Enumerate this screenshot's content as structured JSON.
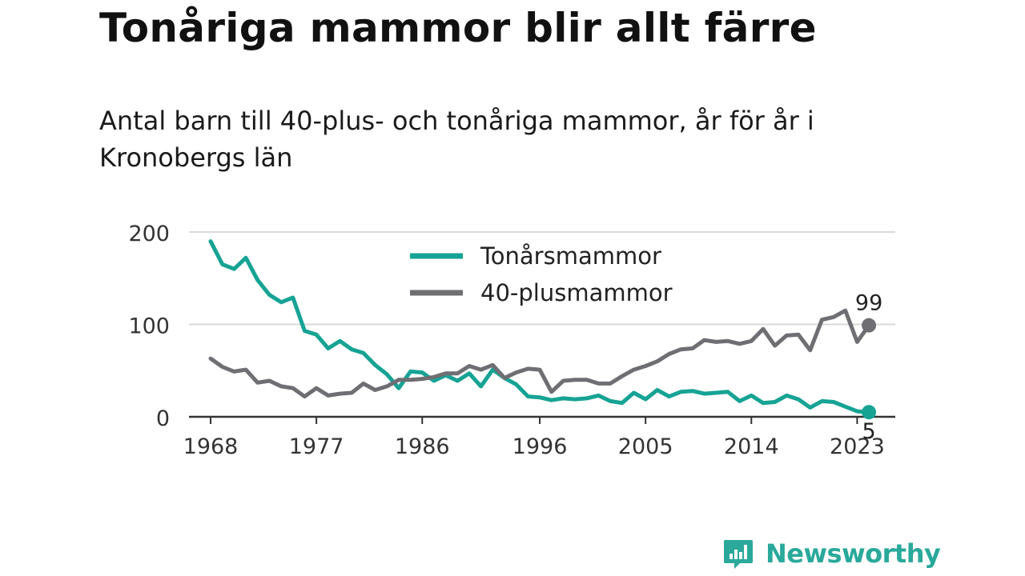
{
  "title": "Tonåriga mammor blir allt färre",
  "subtitle": "Antal barn till 40-plus- och tonåriga mammor, år för år i Kronobergs län",
  "brand": {
    "name": "Newsworthy",
    "icon": "newsworthy-chat-bar-icon",
    "color": "#2aa99b"
  },
  "chart_data": {
    "type": "line",
    "ylim": [
      0,
      200
    ],
    "yticks": [
      0,
      100,
      200
    ],
    "xlim": [
      1968,
      2024
    ],
    "xticks": [
      1968,
      1977,
      1986,
      1996,
      2005,
      2014,
      2023
    ],
    "grid": true,
    "legend_position": "top-center",
    "x": [
      1968,
      1969,
      1970,
      1971,
      1972,
      1973,
      1974,
      1975,
      1976,
      1977,
      1978,
      1979,
      1980,
      1981,
      1982,
      1983,
      1984,
      1985,
      1986,
      1987,
      1988,
      1989,
      1990,
      1991,
      1992,
      1993,
      1994,
      1995,
      1996,
      1997,
      1998,
      1999,
      2000,
      2001,
      2002,
      2003,
      2004,
      2005,
      2006,
      2007,
      2008,
      2009,
      2010,
      2011,
      2012,
      2013,
      2014,
      2015,
      2016,
      2017,
      2018,
      2019,
      2020,
      2021,
      2022,
      2023,
      2024
    ],
    "series": [
      {
        "name": "Tonårsmammor",
        "color": "#16a394",
        "values": [
          190,
          165,
          160,
          172,
          148,
          132,
          124,
          129,
          93,
          89,
          74,
          82,
          73,
          69,
          56,
          46,
          31,
          49,
          48,
          39,
          45,
          39,
          47,
          33,
          51,
          42,
          35,
          22,
          21,
          18,
          20,
          19,
          20,
          23,
          17,
          15,
          26,
          19,
          29,
          22,
          27,
          28,
          25,
          26,
          27,
          17,
          23,
          15,
          16,
          23,
          19,
          10,
          17,
          16,
          11,
          6,
          5
        ],
        "end_label": "5"
      },
      {
        "name": "40-plusmammor",
        "color": "#6f6e73",
        "values": [
          63,
          54,
          49,
          51,
          37,
          39,
          33,
          31,
          22,
          31,
          23,
          25,
          26,
          36,
          29,
          33,
          40,
          40,
          41,
          43,
          47,
          47,
          55,
          51,
          56,
          42,
          48,
          52,
          51,
          27,
          39,
          40,
          40,
          36,
          36,
          44,
          51,
          55,
          60,
          68,
          73,
          74,
          83,
          81,
          82,
          79,
          82,
          95,
          77,
          88,
          89,
          72,
          105,
          108,
          115,
          81,
          99
        ],
        "end_label": "99"
      }
    ]
  }
}
